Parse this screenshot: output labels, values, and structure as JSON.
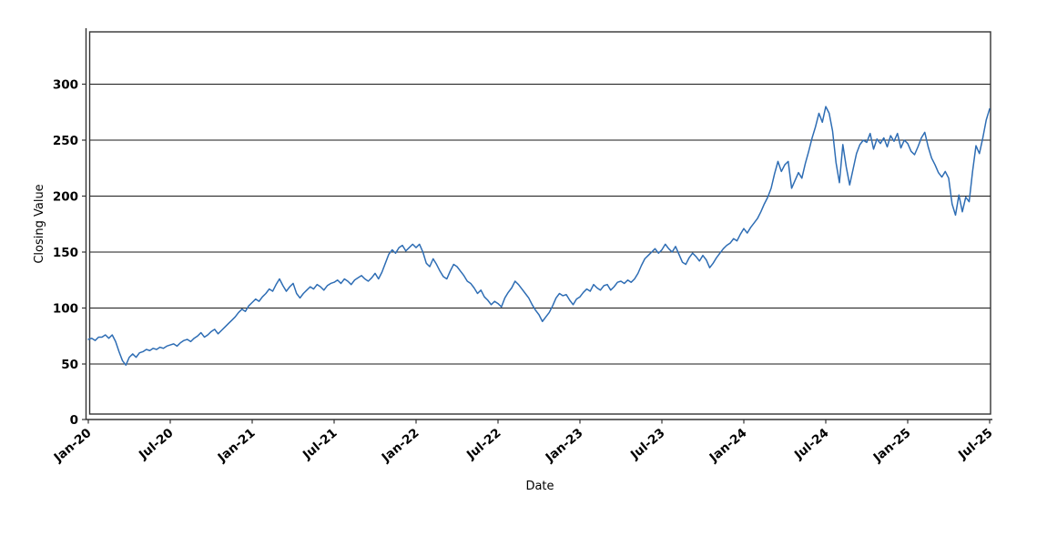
{
  "figure": {
    "background_color": "#ffffff",
    "frame_color": "#333333",
    "gridline_color": "#1a1a1a",
    "text_color": "#000000"
  },
  "chart_data": {
    "type": "line",
    "title": "",
    "xlabel": "Date",
    "ylabel": "Closing Value",
    "x_tick_labels": [
      "Jan-20",
      "Jul-20",
      "Jan-21",
      "Jul-21",
      "Jan-22",
      "Jul-22",
      "Jan-23",
      "Jul-23",
      "Jan-24",
      "Jul-24",
      "Jan-25",
      "Jul-25"
    ],
    "x_tick_interval_months": 6,
    "y_ticks": [
      0,
      50,
      100,
      150,
      200,
      250,
      300
    ],
    "y_tick_labels": [
      "0",
      "50",
      "100",
      "150",
      "200",
      "250",
      "300"
    ],
    "ylim": [
      0,
      345
    ],
    "x_range_months": 66,
    "samples_per_month": 4,
    "grid": "horizontal",
    "legend": "none",
    "series": [
      {
        "name": "Closing Value",
        "color": "#2e6db4",
        "values": [
          72,
          73,
          71,
          74,
          74,
          76,
          73,
          76,
          70,
          61,
          53,
          49,
          56,
          59,
          56,
          60,
          61,
          63,
          62,
          64,
          63,
          65,
          64,
          66,
          67,
          68,
          66,
          69,
          71,
          72,
          70,
          73,
          75,
          78,
          74,
          76,
          79,
          81,
          77,
          80,
          83,
          86,
          89,
          92,
          96,
          99,
          97,
          102,
          105,
          108,
          106,
          110,
          113,
          117,
          115,
          121,
          126,
          120,
          115,
          119,
          122,
          113,
          109,
          113,
          116,
          119,
          117,
          121,
          119,
          116,
          120,
          122,
          123,
          125,
          122,
          126,
          124,
          121,
          125,
          127,
          129,
          126,
          124,
          127,
          131,
          126,
          132,
          140,
          148,
          152,
          149,
          154,
          156,
          151,
          154,
          157,
          154,
          157,
          150,
          140,
          137,
          144,
          139,
          133,
          128,
          126,
          133,
          139,
          137,
          133,
          129,
          124,
          122,
          118,
          113,
          116,
          110,
          107,
          103,
          106,
          104,
          101,
          109,
          114,
          118,
          124,
          121,
          117,
          113,
          109,
          103,
          98,
          94,
          88,
          92,
          96,
          102,
          109,
          113,
          111,
          112,
          107,
          103,
          108,
          110,
          114,
          117,
          115,
          121,
          118,
          116,
          120,
          121,
          116,
          119,
          123,
          124,
          122,
          125,
          123,
          126,
          131,
          138,
          144,
          147,
          150,
          153,
          149,
          152,
          157,
          153,
          150,
          155,
          148,
          141,
          139,
          145,
          149,
          146,
          142,
          147,
          143,
          136,
          140,
          145,
          149,
          153,
          156,
          158,
          162,
          160,
          166,
          171,
          167,
          172,
          176,
          180,
          186,
          193,
          199,
          207,
          220,
          231,
          222,
          228,
          231,
          207,
          214,
          221,
          216,
          229,
          240,
          252,
          262,
          274,
          266,
          280,
          274,
          258,
          230,
          212,
          246,
          226,
          210,
          224,
          238,
          246,
          250,
          248,
          256,
          242,
          251,
          247,
          252,
          244,
          254,
          249,
          256,
          243,
          250,
          247,
          240,
          237,
          244,
          252,
          257,
          244,
          234,
          228,
          221,
          217,
          222,
          216,
          193,
          183,
          201,
          186,
          199,
          195,
          222,
          245,
          238,
          252,
          268,
          278
        ]
      }
    ]
  }
}
